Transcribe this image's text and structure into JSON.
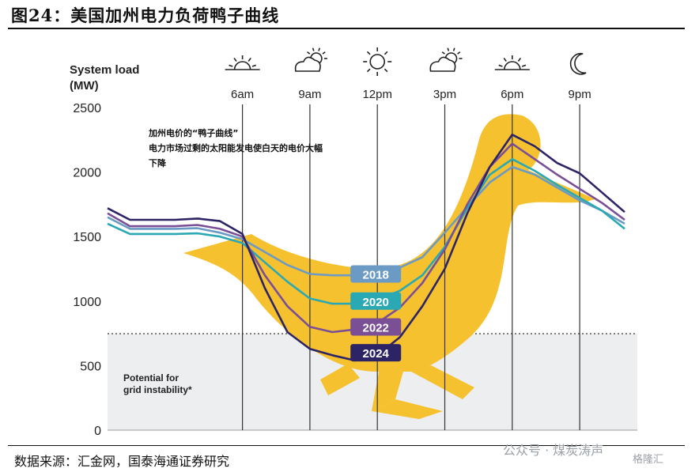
{
  "figure": {
    "title": "图24：美国加州电力负荷鸭子曲线",
    "source": "数据来源：汇金网，国泰海通证券研究",
    "watermark": "公众号 · 煤炭涛声",
    "watermark2": "格隆汇"
  },
  "chart_data": {
    "type": "line",
    "ylabel_line1": "System load",
    "ylabel_line2": "(MW)",
    "ylim": [
      0,
      2500
    ],
    "yticks": [
      "0",
      "500",
      "1000",
      "1500",
      "2000",
      "2500"
    ],
    "time_labels": [
      "6am",
      "9am",
      "12pm",
      "3pm",
      "6pm",
      "9pm"
    ],
    "time_icons": [
      "sunrise-icon",
      "partly-cloudy-icon",
      "sun-icon",
      "partly-cloudy-icon",
      "sunset-icon",
      "moon-icon"
    ],
    "annotation": [
      "加州电价的“鸭子曲线”",
      "电力市场过剩的太阳能发电使白天的电价大幅",
      "下降"
    ],
    "threshold": {
      "value": 750,
      "label_line1": "Potential for",
      "label_line2": "grid instability*"
    },
    "x": [
      0,
      1,
      2,
      3,
      4,
      5,
      6,
      7,
      8,
      9,
      10,
      11,
      12,
      13,
      14,
      15,
      16,
      17,
      18,
      19,
      20,
      21,
      22,
      23
    ],
    "series": [
      {
        "name": "2018",
        "color": "#6b9ac4",
        "label_y": 1210,
        "values": [
          1650,
          1560,
          1560,
          1560,
          1565,
          1530,
          1480,
          1380,
          1280,
          1210,
          1200,
          1200,
          1220,
          1260,
          1340,
          1530,
          1730,
          1920,
          2040,
          1980,
          1880,
          1780,
          1700,
          1600
        ]
      },
      {
        "name": "2020",
        "color": "#2aa8b4",
        "label_y": 1000,
        "values": [
          1600,
          1520,
          1520,
          1520,
          1525,
          1500,
          1450,
          1300,
          1150,
          1020,
          980,
          980,
          1010,
          1080,
          1200,
          1420,
          1720,
          1980,
          2100,
          2010,
          1900,
          1800,
          1700,
          1560
        ]
      },
      {
        "name": "2022",
        "color": "#7a4f95",
        "label_y": 800,
        "values": [
          1680,
          1580,
          1580,
          1580,
          1590,
          1560,
          1500,
          1200,
          960,
          800,
          760,
          780,
          830,
          950,
          1140,
          1400,
          1750,
          2040,
          2220,
          2100,
          1980,
          1870,
          1760,
          1630
        ]
      },
      {
        "name": "2024",
        "color": "#2d2466",
        "label_y": 600,
        "values": [
          1720,
          1630,
          1630,
          1630,
          1640,
          1620,
          1520,
          1100,
          760,
          630,
          580,
          540,
          580,
          720,
          960,
          1250,
          1680,
          2040,
          2290,
          2200,
          2070,
          1990,
          1840,
          1690
        ]
      }
    ]
  }
}
